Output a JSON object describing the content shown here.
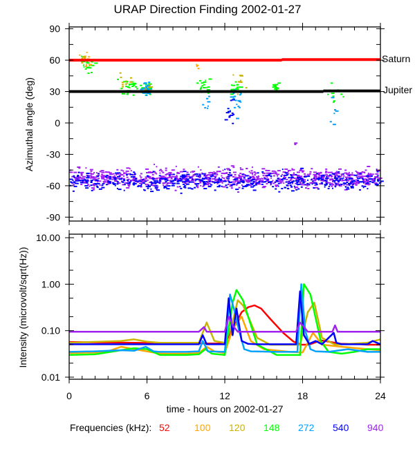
{
  "chart_data": [
    {
      "type": "scatter",
      "title": "URAP Direction Finding  2002-01-27",
      "xlabel": "",
      "ylabel": "Azimuthal angle (deg)",
      "xlim": [
        0,
        24
      ],
      "ylim": [
        -95,
        95
      ],
      "y_ticks": [
        90,
        60,
        30,
        0,
        -30,
        -60,
        -90
      ],
      "y_tick_labels": [
        "90",
        "60",
        "30",
        "0",
        "-30",
        "-60",
        "-90"
      ],
      "reference_lines": [
        {
          "name": "Saturn",
          "color": "#ff0000",
          "segments": [
            {
              "x": [
                0,
                16.4
              ],
              "y": 60
            },
            {
              "x": [
                16.4,
                24
              ],
              "y": 60.6
            }
          ]
        },
        {
          "name": "Jupiter",
          "color": "#000000",
          "segments": [
            {
              "x": [
                0,
                19.6
              ],
              "y": 30
            },
            {
              "x": [
                19.6,
                24
              ],
              "y": 30.6
            }
          ]
        }
      ],
      "clusters": [
        {
          "freq": "940",
          "x": [
            0,
            24
          ],
          "y_center": -52,
          "y_spread": 9,
          "count": 900
        },
        {
          "freq": "540",
          "x": [
            0,
            24
          ],
          "y_center": -55,
          "y_spread": 8,
          "count": 520
        },
        {
          "freq": "148",
          "x_center": 1.3,
          "x_spread": 0.5,
          "y_center": 57,
          "y_spread": 8,
          "count": 22
        },
        {
          "freq": "100",
          "x_center": 1.2,
          "x_spread": 0.45,
          "y_center": 60,
          "y_spread": 7,
          "count": 14
        },
        {
          "freq": "120",
          "x_center": 1.3,
          "x_spread": 0.4,
          "y_center": 62,
          "y_spread": 6,
          "count": 8
        },
        {
          "freq": "148",
          "x_center": 4.5,
          "x_spread": 0.6,
          "y_center": 34,
          "y_spread": 9,
          "count": 30
        },
        {
          "freq": "120",
          "x_center": 4.3,
          "x_spread": 0.4,
          "y_center": 42,
          "y_spread": 8,
          "count": 10
        },
        {
          "freq": "148",
          "x_center": 5.9,
          "x_spread": 0.35,
          "y_center": 34,
          "y_spread": 5,
          "count": 30
        },
        {
          "freq": "272",
          "x_center": 5.9,
          "x_spread": 0.3,
          "y_center": 33,
          "y_spread": 6,
          "count": 35
        },
        {
          "freq": "120",
          "x_center": 6.1,
          "x_spread": 0.25,
          "y_center": 34,
          "y_spread": 4,
          "count": 8
        },
        {
          "freq": "148",
          "x_center": 10.3,
          "x_spread": 0.4,
          "y_center": 36,
          "y_spread": 9,
          "count": 20
        },
        {
          "freq": "100",
          "x_center": 9.8,
          "x_spread": 0.1,
          "y_center": 55,
          "y_spread": 3,
          "count": 4
        },
        {
          "freq": "272",
          "x_center": 10.5,
          "x_spread": 0.3,
          "y_center": 20,
          "y_spread": 14,
          "count": 8
        },
        {
          "freq": "148",
          "x_center": 12.8,
          "x_spread": 0.4,
          "y_center": 35,
          "y_spread": 8,
          "count": 18
        },
        {
          "freq": "120",
          "x_center": 13.1,
          "x_spread": 0.4,
          "y_center": 38,
          "y_spread": 12,
          "count": 12
        },
        {
          "freq": "272",
          "x_center": 12.9,
          "x_spread": 0.45,
          "y_center": 22,
          "y_spread": 14,
          "count": 18
        },
        {
          "freq": "540",
          "x_center": 12.3,
          "x_spread": 0.25,
          "y_center": 10,
          "y_spread": 12,
          "count": 12
        },
        {
          "freq": "148",
          "x_center": 15.9,
          "x_spread": 0.25,
          "y_center": 34,
          "y_spread": 4,
          "count": 18
        },
        {
          "freq": "148",
          "x_center": 20.0,
          "x_spread": 1.2,
          "y_center": 30,
          "y_spread": 8,
          "count": 10
        },
        {
          "freq": "272",
          "x_center": 20.5,
          "x_spread": 0.8,
          "y_center": 15,
          "y_spread": 20,
          "count": 6
        },
        {
          "freq": "940",
          "x_center": 17.3,
          "x_spread": 0.2,
          "y_center": -18,
          "y_spread": 4,
          "count": 2
        }
      ]
    },
    {
      "type": "line",
      "xlabel": "time - hours on 2002-01-27",
      "ylabel": "Intensity (microvolt/sqrt(Hz))",
      "yscale": "log",
      "xlim": [
        0,
        24
      ],
      "ylim": [
        0.01,
        10
      ],
      "x_ticks": [
        0,
        6,
        12,
        18,
        24
      ],
      "x_tick_labels": [
        "0",
        "6",
        "12",
        "18",
        "24"
      ],
      "y_ticks": [
        10,
        1,
        0.1,
        0.01
      ],
      "y_tick_labels": [
        "10.00",
        "1.00",
        "0.10",
        "0.01"
      ],
      "series": [
        {
          "name": "52",
          "color": "#ff0000",
          "x": [
            0,
            2,
            5,
            7,
            9,
            10.5,
            12,
            13.3,
            13.8,
            14.3,
            14.8,
            15.5,
            16.5,
            17.3,
            17.9,
            18.5,
            19.4,
            20,
            21,
            22,
            23,
            24
          ],
          "y": [
            0.057,
            0.056,
            0.055,
            0.054,
            0.053,
            0.053,
            0.053,
            0.25,
            0.32,
            0.35,
            0.3,
            0.18,
            0.09,
            0.058,
            0.05,
            0.05,
            0.062,
            0.058,
            0.052,
            0.052,
            0.05,
            0.05
          ]
        },
        {
          "name": "100",
          "color": "#ffa500",
          "x": [
            0,
            2,
            3,
            4,
            5,
            6,
            7,
            9,
            10,
            10.6,
            11.2,
            12,
            12.6,
            13.3,
            14,
            15,
            17,
            18,
            18.8,
            19.5,
            21,
            23,
            24
          ],
          "y": [
            0.033,
            0.034,
            0.036,
            0.045,
            0.04,
            0.036,
            0.032,
            0.032,
            0.033,
            0.045,
            0.036,
            0.033,
            0.11,
            0.2,
            0.06,
            0.04,
            0.035,
            0.034,
            0.09,
            0.05,
            0.045,
            0.04,
            0.038
          ]
        },
        {
          "name": "120",
          "color": "#c8b400",
          "x": [
            0,
            4,
            5,
            6,
            7,
            10,
            10.6,
            11.2,
            12,
            12.5,
            13.0,
            13.4,
            13.8,
            14.5,
            15.5,
            17.8,
            18.4,
            18.9,
            19.5,
            20.5,
            23,
            24
          ],
          "y": [
            0.055,
            0.06,
            0.065,
            0.058,
            0.055,
            0.055,
            0.15,
            0.06,
            0.055,
            0.12,
            0.45,
            0.35,
            0.2,
            0.07,
            0.05,
            0.05,
            0.25,
            0.4,
            0.07,
            0.05,
            0.055,
            0.065
          ]
        },
        {
          "name": "148",
          "color": "#00ff00",
          "x": [
            0,
            2,
            4,
            5,
            6,
            7,
            9,
            10,
            10.5,
            11,
            12,
            12.6,
            12.9,
            13.4,
            13.8,
            14.5,
            16,
            17.8,
            18.1,
            18.6,
            19.4,
            20,
            21,
            22,
            23,
            24
          ],
          "y": [
            0.03,
            0.031,
            0.038,
            0.042,
            0.04,
            0.03,
            0.03,
            0.031,
            0.04,
            0.032,
            0.03,
            0.4,
            0.75,
            0.45,
            0.2,
            0.05,
            0.03,
            0.03,
            1.0,
            0.6,
            0.06,
            0.035,
            0.032,
            0.035,
            0.04,
            0.04
          ]
        },
        {
          "name": "272",
          "color": "#00a0ff",
          "x": [
            0,
            2,
            4,
            5,
            5.9,
            6.5,
            7,
            9,
            10,
            10.3,
            10.7,
            12,
            12.4,
            12.7,
            13.1,
            13.5,
            14,
            16,
            17.6,
            17.9,
            18.2,
            18.6,
            19,
            20,
            21.5,
            23,
            24
          ],
          "y": [
            0.035,
            0.036,
            0.038,
            0.037,
            0.045,
            0.036,
            0.035,
            0.035,
            0.036,
            0.06,
            0.036,
            0.035,
            0.6,
            0.3,
            0.1,
            0.04,
            0.036,
            0.035,
            0.035,
            1.0,
            0.1,
            0.04,
            0.036,
            0.035,
            0.04,
            0.035,
            0.035
          ]
        },
        {
          "name": "540",
          "color": "#0000ff",
          "x": [
            0,
            5,
            9,
            10,
            10.3,
            10.6,
            12,
            12.3,
            12.6,
            12.9,
            13.3,
            13.8,
            14.5,
            17.5,
            17.8,
            18.1,
            18.5,
            19,
            19.5,
            20.4,
            20.6,
            21,
            23,
            23.4,
            24
          ],
          "y": [
            0.051,
            0.051,
            0.051,
            0.051,
            0.08,
            0.051,
            0.051,
            0.5,
            0.08,
            0.3,
            0.06,
            0.052,
            0.051,
            0.051,
            0.7,
            0.08,
            0.052,
            0.06,
            0.051,
            0.09,
            0.055,
            0.051,
            0.051,
            0.06,
            0.051
          ]
        },
        {
          "name": "940",
          "color": "#a020f0",
          "x": [
            0,
            10,
            10.4,
            10.6,
            12,
            12.3,
            12.6,
            13,
            17.5,
            17.8,
            18.1,
            18.4,
            20.3,
            20.5,
            20.7,
            24
          ],
          "y": [
            0.095,
            0.095,
            0.12,
            0.095,
            0.095,
            0.2,
            0.13,
            0.095,
            0.095,
            0.15,
            0.12,
            0.095,
            0.095,
            0.13,
            0.095,
            0.095
          ]
        }
      ]
    }
  ],
  "top_plot": {
    "y_tick_labels": [
      "90",
      "60",
      "30",
      "0",
      "-30",
      "-60",
      "-90"
    ],
    "ylabel": "Azimuthal angle (deg)",
    "saturn_label": "Saturn",
    "jupiter_label": "Jupiter"
  },
  "bottom_plot": {
    "y_tick_labels": [
      "10.00",
      "1.00",
      "0.10",
      "0.01"
    ],
    "ylabel": "Intensity (microvolt/sqrt(Hz))",
    "x_tick_labels": [
      "0",
      "6",
      "12",
      "18",
      "24"
    ],
    "xlabel": "time - hours on 2002-01-27"
  },
  "title": "URAP Direction Finding  2002-01-27",
  "legend": {
    "title": "Frequencies (kHz):",
    "items": [
      {
        "label": "52",
        "color": "#ff0000"
      },
      {
        "label": "100",
        "color": "#ffa500"
      },
      {
        "label": "120",
        "color": "#c8b400"
      },
      {
        "label": "148",
        "color": "#00ff00"
      },
      {
        "label": "272",
        "color": "#00a0ff"
      },
      {
        "label": "540",
        "color": "#0000ff"
      },
      {
        "label": "940",
        "color": "#a020f0"
      }
    ]
  }
}
